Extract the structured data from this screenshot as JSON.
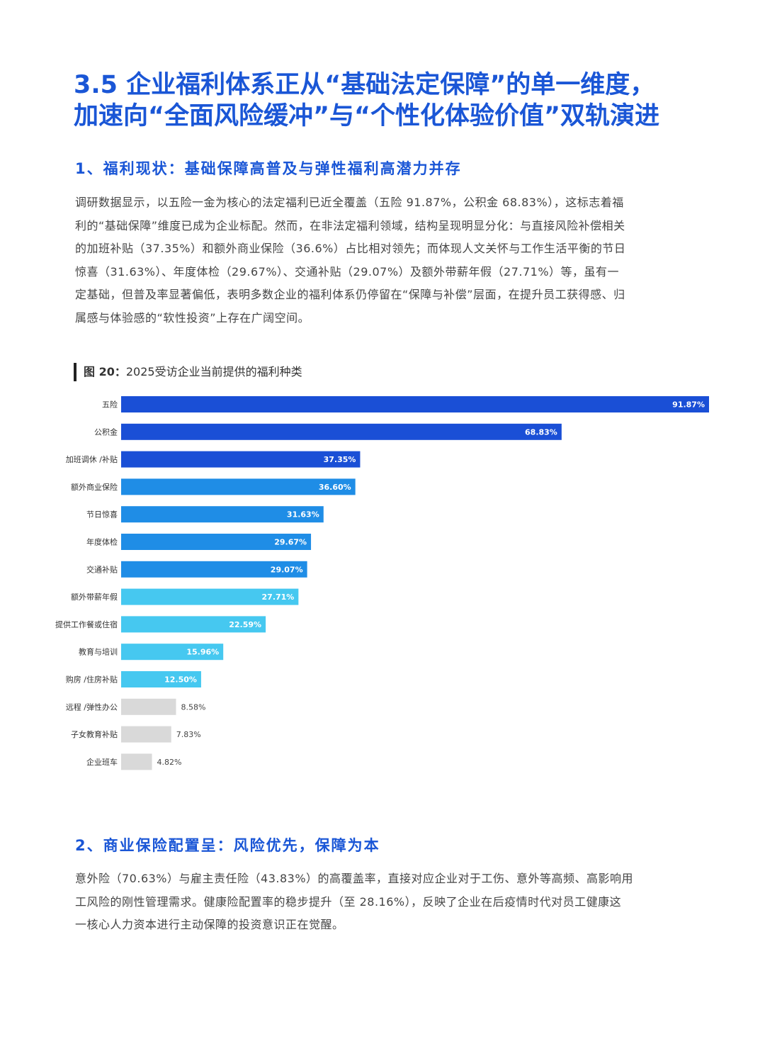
{
  "title": {
    "line1": "3.5 企业福利体系正从“基础法定保障”的单一维度，",
    "line2": "加速向“全面风险缓冲”与“个性化体验价值”双轨演进"
  },
  "section1": {
    "heading": "1、福利现状：基础保障高普及与弹性福利高潜力并存",
    "paragraph_lines": [
      "调研数据显示，以五险一金为核心的法定福利已近全覆盖（五险 91.87%，公积金 68.83%），这标志着福",
      "利的“基础保障”维度已成为企业标配。然而，在非法定福利领域，结构呈现明显分化：与直接风险补偿相关",
      "的加班补贴（37.35%）和额外商业保险（36.6%）占比相对领先；而体现人文关怀与工作生活平衡的节日",
      "惊喜（31.63%）、年度体检（29.67%）、交通补贴（29.07%）及额外带薪年假（27.71%）等，虽有一",
      "定基础，但普及率显著偏低，表明多数企业的福利体系仍停留在“保障与补偿”层面，在提升员工获得感、归",
      "属感与体验感的“软性投资”上存在广阔空间。"
    ]
  },
  "figure": {
    "number": "图 20：",
    "caption": "2025受访企业当前提供的福利种类"
  },
  "chart_data": {
    "type": "bar",
    "orientation": "horizontal",
    "title": "2025受访企业当前提供的福利种类",
    "categories": [
      "五险",
      "公积金",
      "加班调休 /补贴",
      "额外商业保险",
      "节日惊喜",
      "年度体检",
      "交通补贴",
      "额外带薪年假",
      "提供工作餐或住宿",
      "教育与培训",
      "购房 /住房补贴",
      "远程 /弹性办公",
      "子女教育补贴",
      "企业班车"
    ],
    "values": [
      91.87,
      68.83,
      37.35,
      36.6,
      31.63,
      29.67,
      29.07,
      27.71,
      22.59,
      15.96,
      12.5,
      8.58,
      7.83,
      4.82
    ],
    "value_labels": [
      "91.87%",
      "68.83%",
      "37.35%",
      "36.60%",
      "31.63%",
      "29.67%",
      "29.07%",
      "27.71%",
      "22.59%",
      "15.96%",
      "12.50%",
      "8.58%",
      "7.83%",
      "4.82%"
    ],
    "colors": [
      "#1a4fd6",
      "#1a4fd6",
      "#1a4fd6",
      "#1f8de6",
      "#1f8de6",
      "#1f8de6",
      "#1f8de6",
      "#46c8f0",
      "#46c8f0",
      "#46c8f0",
      "#46c8f0",
      "#d9d9d9",
      "#d9d9d9",
      "#d9d9d9"
    ],
    "label_inside": [
      true,
      true,
      true,
      true,
      true,
      true,
      true,
      true,
      true,
      true,
      true,
      false,
      false,
      false
    ],
    "xlim": [
      0,
      100
    ],
    "grid": false,
    "legend": "none"
  },
  "section2": {
    "heading": "2、商业保险配置呈：风险优先，保障为本",
    "paragraph_lines": [
      "意外险（70.63%）与雇主责任险（43.83%）的高覆盖率，直接对应企业对于工伤、意外等高频、高影响用",
      "工风险的刚性管理需求。健康险配置率的稳步提升（至 28.16%），反映了企业在后疫情时代对员工健康这",
      "一核心人力资本进行主动保障的投资意识正在觉醒。"
    ]
  }
}
